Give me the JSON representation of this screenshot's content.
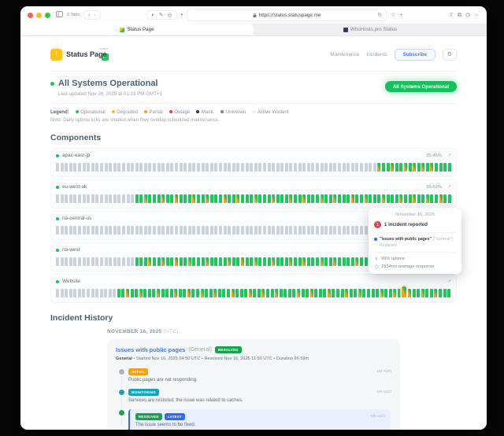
{
  "browser": {
    "tabs_label": "2 Tabs",
    "url": "https://status.statuspage.me",
    "tab_active": "Status Page",
    "tab_inactive": "WhoHosts.pro Status"
  },
  "icons": {
    "back": "‹",
    "forward": "›",
    "shade": "◐",
    "pen": "✎",
    "target": "◎",
    "ext_dot": "•",
    "refresh": "↻",
    "star": "☆",
    "plus": "+",
    "share": "⇧",
    "copy": "⧉",
    "history": "◷",
    "more": "⋯",
    "gear": "⚙",
    "expand": "↗",
    "logo_exclaim": "!",
    "logo_check": "✓"
  },
  "header": {
    "brand": "Status Page",
    "brand_badge": "hosted",
    "nav": {
      "maintenance": "Maintenance",
      "incidents": "Incidents"
    },
    "subscribe_label": "Subscribe",
    "status_pill": "All Systems Operational"
  },
  "status": {
    "title": "All Systems Operational",
    "last_updated": "Last updated Nov 26, 2025 at 01:23 PM GMT+1"
  },
  "legend": {
    "label": "Legend:",
    "items": [
      {
        "label": "Operational",
        "color": "#21c55d"
      },
      {
        "label": "Degraded",
        "color": "#f5c211"
      },
      {
        "label": "Partial",
        "color": "#f7a013"
      },
      {
        "label": "Outage",
        "color": "#e8414d"
      },
      {
        "label": "Maint.",
        "color": "#2b3a52"
      },
      {
        "label": "Unknown",
        "color": "#79838e"
      },
      {
        "label": "Active Incident",
        "color": "#f8ecd2"
      }
    ],
    "note": "Note: Daily uptime ticks are shaded when they overlap scheduled maintenance."
  },
  "components": {
    "title": "Components",
    "items": [
      {
        "name": "apac-east-jp",
        "uptime": "99.46%",
        "ticks": [
          "gggggggggg",
          "gggggggggg",
          "gggggggggg",
          "gggggggggg",
          "gggggggggg",
          "gggggggggg",
          "gggggggggg",
          "ggg",
          "OGGOGGOGOGOGOGGGG"
        ]
      },
      {
        "name": "eu-west-uk",
        "uptime": "99.63%",
        "ticks": [
          "gggggggggg",
          "gggggggg",
          "GGOGGGOGGO",
          "GGGOGGOGGG",
          "OGGOGGGOGG",
          "GOGGGOGGOG",
          "GGOGGOGGGO",
          "GGOGGGOGGG",
          "OGGOGGOGGO",
          "GG"
        ]
      },
      {
        "name": "na-central-us",
        "uptime": "",
        "ticks": [
          "gggggggggg",
          "gggggggggg",
          "gggggggggg",
          "gggggggggg",
          "gggggggggg",
          "gggggggggg",
          "gggggggggg",
          "gggggggggg",
          "gggggg",
          "GGGG"
        ]
      },
      {
        "name": "na-west",
        "uptime": "",
        "ticks": [
          "gggggggggg",
          "gggggggg",
          "GGGOGGOGGO",
          "GGOGGGOGGG",
          "GOGGOGGOGG",
          "GOGGGOGGOG",
          "GGOGGOGGGG",
          "OGGOGGGOGG",
          "GGOGGOGGGO",
          "GG"
        ]
      },
      {
        "name": "Website",
        "uptime": "",
        "ticks": [
          "gggggggggg",
          "gggg",
          "GGOGGOGGGO",
          "GGGOGGOGGO",
          "GGOGGGOGGG",
          "OGGOGGOGGG",
          "GOGGOGGGOG",
          "GGOGGOGGGG",
          "OGGOGHOGGO",
          "GGOGGG"
        ]
      }
    ]
  },
  "tooltip": {
    "date": "November 16, 2025",
    "count": "1",
    "count_text": "1 incident reported",
    "incident_title": "\"Issues with public pages\"",
    "incident_scope": "(\"General\")",
    "incident_status": "Resolved",
    "uptime": "99% uptime",
    "response": "1534ms average response"
  },
  "incident_history": {
    "title": "Incident History",
    "date_label": "NOVEMBER 16, 2025",
    "date_suffix": "(UTC)",
    "incident": {
      "title": "Issues with public pages",
      "scope": "(General)",
      "badge": {
        "label": "RESOLVED",
        "color": "#17a24b"
      },
      "meta_bold": "General",
      "meta_rest": " • Started Nov 16, 2025 04:50 UTC • Resolved Nov 16, 2025 11:50 UTC • Duration 6h 59m",
      "updates": [
        {
          "badges": [
            {
              "label": "INITIAL",
              "color": "#f7a013"
            }
          ],
          "text": "Public pages are not responding.",
          "time": "1W AGO",
          "dot_color": "#aab3bd",
          "latest": false
        },
        {
          "badges": [
            {
              "label": "MONITORING",
              "color": "#12a5bd"
            }
          ],
          "text": "Services are restored; the issue was related to caches.",
          "time": "1W AGO",
          "dot_color": "#12a5bd",
          "latest": false
        },
        {
          "badges": [
            {
              "label": "RESOLVED",
              "color": "#17a24b"
            },
            {
              "label": "LATEST",
              "color": "#2e6bf0"
            }
          ],
          "text": "The issue seems to be fixed.",
          "time": "1W AGO",
          "dot_color": "#17a24b",
          "latest": true
        }
      ]
    }
  }
}
